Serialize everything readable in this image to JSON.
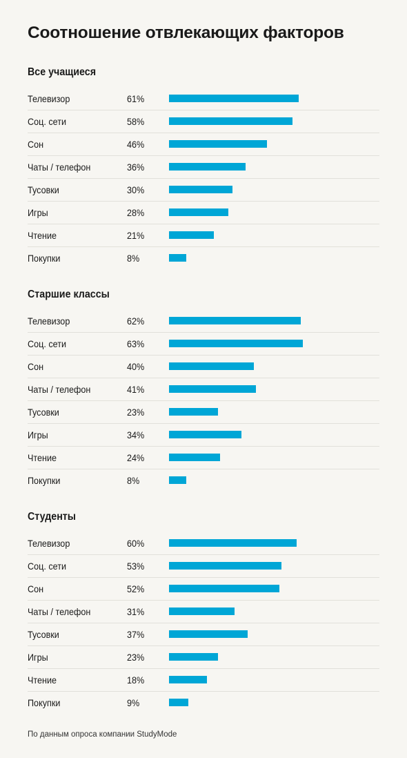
{
  "title": "Соотношение отвлекающих факторов",
  "footnote": "По данным опроса компании StudyMode",
  "colors": {
    "bar": "#00a6d6",
    "background": "#f7f6f2"
  },
  "chart_data": {
    "type": "bar",
    "orientation": "horizontal",
    "title": "Соотношение отвлекающих факторов",
    "categories": [
      "Телевизор",
      "Соц. сети",
      "Сон",
      "Чаты / телефон",
      "Тусовки",
      "Игры",
      "Чтение",
      "Покупки"
    ],
    "xlim": [
      0,
      100
    ],
    "series": [
      {
        "name": "Все учащиеся",
        "values": [
          61,
          58,
          46,
          36,
          30,
          28,
          21,
          8
        ],
        "labels": [
          "61%",
          "58%",
          "46%",
          "36%",
          "30%",
          "28%",
          "21%",
          "8%"
        ]
      },
      {
        "name": "Старшие классы",
        "values": [
          62,
          63,
          40,
          41,
          23,
          34,
          24,
          8
        ],
        "labels": [
          "62%",
          "63%",
          "40%",
          "41%",
          "23%",
          "34%",
          "24%",
          "8%"
        ]
      },
      {
        "name": "Студенты",
        "values": [
          60,
          53,
          52,
          31,
          37,
          23,
          18,
          9
        ],
        "labels": [
          "60%",
          "53%",
          "52%",
          "31%",
          "37%",
          "23%",
          "18%",
          "9%"
        ]
      }
    ]
  }
}
